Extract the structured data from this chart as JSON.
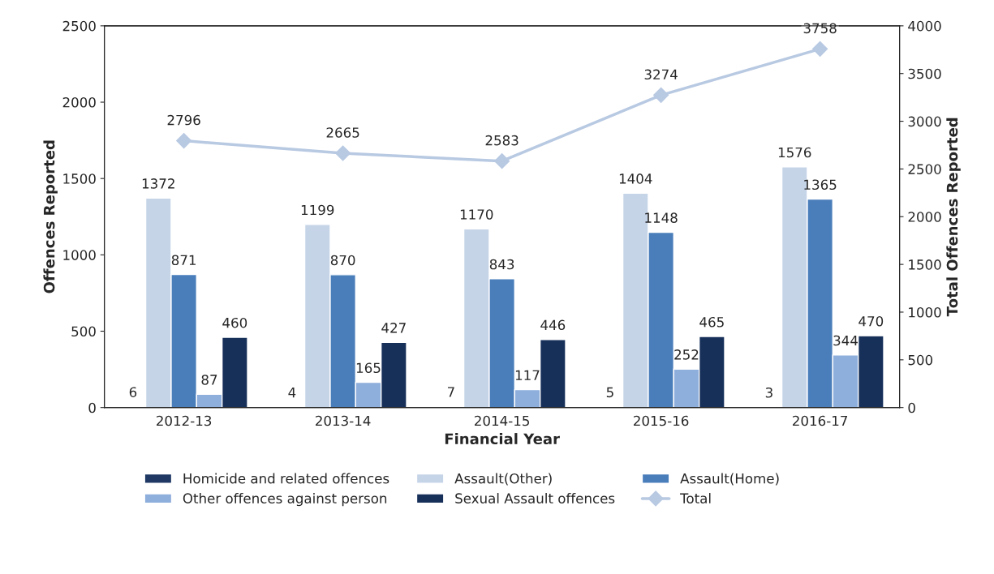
{
  "chart_data": {
    "type": "bar",
    "xlabel": "Financial Year",
    "ylabel": "Offences Reported",
    "y2label": "Total Offences Reported",
    "categories": [
      "2012-13",
      "2013-14",
      "2014-15",
      "2015-16",
      "2016-17"
    ],
    "series": [
      {
        "name": "Homicide and related offences",
        "color": "#1f3864",
        "values": [
          6,
          4,
          7,
          5,
          3
        ]
      },
      {
        "name": "Assault(Other)",
        "color": "#c6d4e8",
        "values": [
          1372,
          1199,
          1170,
          1404,
          1576
        ]
      },
      {
        "name": "Assault(Home)",
        "color": "#4a7ebb",
        "values": [
          871,
          870,
          843,
          1148,
          1365
        ]
      },
      {
        "name": "Other offences against person",
        "color": "#8eaedc",
        "values": [
          87,
          165,
          117,
          252,
          344
        ]
      },
      {
        "name": "Sexual Assault offences",
        "color": "#17305a",
        "values": [
          460,
          427,
          446,
          465,
          470
        ]
      },
      {
        "name": "Total",
        "color": "#b8c9e2",
        "type": "line",
        "axis": "y2",
        "marker": "diamond",
        "values": [
          2796,
          2665,
          2583,
          3274,
          3758
        ]
      }
    ],
    "ylim": [
      0,
      2500
    ],
    "yticks": [
      0,
      500,
      1000,
      1500,
      2000,
      2500
    ],
    "y2lim": [
      0,
      4000
    ],
    "y2ticks": [
      0,
      500,
      1000,
      1500,
      2000,
      2500,
      3000,
      3500,
      4000
    ],
    "data_labels": true,
    "grid": false,
    "legend": "bottom"
  }
}
